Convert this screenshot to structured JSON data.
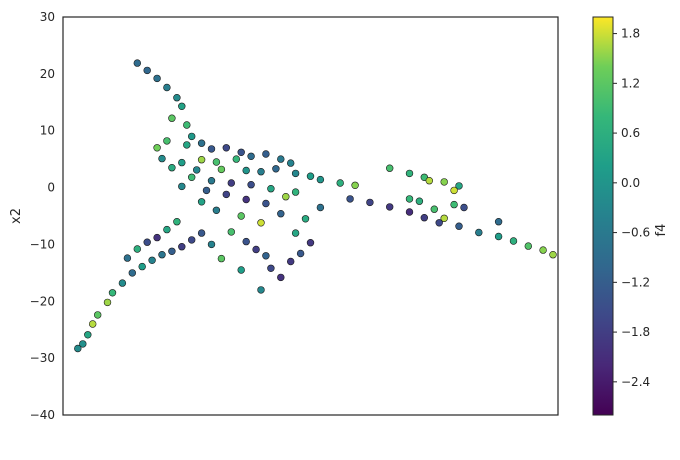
{
  "chart_data": {
    "type": "scatter",
    "title": "",
    "xlabel": "",
    "ylabel": "x2",
    "ylim": [
      -40,
      30
    ],
    "yticks": [
      "30",
      "20",
      "10",
      "0",
      "−10",
      "−20",
      "−30",
      "−40"
    ],
    "xticks": [],
    "grid": false,
    "colorbar": {
      "label": "f4",
      "range": [
        -2.8,
        2.0
      ],
      "ticks": [
        "1.8",
        "1.2",
        "0.6",
        "0.0",
        "−0.6",
        "−1.2",
        "−1.8",
        "−2.4"
      ],
      "colormap": "viridis"
    },
    "series": [
      {
        "points": [
          [
            0.15,
            21.9,
            -0.9
          ],
          [
            0.17,
            20.6,
            -1.0
          ],
          [
            0.19,
            19.2,
            -0.8
          ],
          [
            0.21,
            17.6,
            -0.5
          ],
          [
            0.23,
            15.8,
            -0.2
          ],
          [
            0.24,
            14.3,
            0.3
          ],
          [
            0.22,
            12.2,
            1.2
          ],
          [
            0.25,
            11.0,
            0.9
          ],
          [
            0.26,
            9.0,
            0.1
          ],
          [
            0.21,
            8.2,
            1.0
          ],
          [
            0.19,
            7.0,
            1.4
          ],
          [
            0.25,
            7.5,
            0.4
          ],
          [
            0.28,
            7.8,
            -0.8
          ],
          [
            0.3,
            6.8,
            -1.3
          ],
          [
            0.33,
            7.0,
            -1.6
          ],
          [
            0.36,
            6.2,
            -1.4
          ],
          [
            0.38,
            5.5,
            -0.9
          ],
          [
            0.41,
            5.9,
            -1.2
          ],
          [
            0.44,
            5.0,
            -0.6
          ],
          [
            0.46,
            4.3,
            -0.4
          ],
          [
            0.35,
            5.0,
            0.8
          ],
          [
            0.31,
            4.5,
            1.0
          ],
          [
            0.28,
            4.9,
            1.6
          ],
          [
            0.24,
            4.4,
            0.2
          ],
          [
            0.2,
            5.1,
            -0.2
          ],
          [
            0.22,
            3.5,
            0.5
          ],
          [
            0.27,
            3.1,
            -0.3
          ],
          [
            0.32,
            3.2,
            1.3
          ],
          [
            0.37,
            3.0,
            0.0
          ],
          [
            0.4,
            2.8,
            -0.5
          ],
          [
            0.43,
            3.3,
            -1.0
          ],
          [
            0.47,
            2.5,
            -0.3
          ],
          [
            0.5,
            2.0,
            0.2
          ],
          [
            0.52,
            1.4,
            0.0
          ],
          [
            0.56,
            0.8,
            0.6
          ],
          [
            0.59,
            0.4,
            1.5
          ],
          [
            0.26,
            1.8,
            0.9
          ],
          [
            0.3,
            1.2,
            -0.6
          ],
          [
            0.34,
            0.8,
            -1.8
          ],
          [
            0.38,
            0.5,
            -1.5
          ],
          [
            0.42,
            -0.2,
            0.4
          ],
          [
            0.47,
            -0.8,
            0.7
          ],
          [
            0.24,
            0.2,
            -0.3
          ],
          [
            0.29,
            -0.5,
            -1.2
          ],
          [
            0.33,
            -1.2,
            -1.7
          ],
          [
            0.37,
            -2.1,
            -2.0
          ],
          [
            0.41,
            -2.8,
            -1.4
          ],
          [
            0.45,
            -1.6,
            1.6
          ],
          [
            0.52,
            -3.5,
            -0.8
          ],
          [
            0.28,
            -2.5,
            0.3
          ],
          [
            0.31,
            -4.0,
            -0.5
          ],
          [
            0.36,
            -5.0,
            1.2
          ],
          [
            0.4,
            -6.2,
            1.8
          ],
          [
            0.44,
            -4.6,
            -1.1
          ],
          [
            0.49,
            -5.5,
            0.5
          ],
          [
            0.66,
            3.4,
            1.0
          ],
          [
            0.7,
            2.5,
            0.7
          ],
          [
            0.73,
            1.8,
            0.9
          ],
          [
            0.77,
            1.0,
            1.5
          ],
          [
            0.8,
            0.3,
            0.4
          ],
          [
            0.74,
            1.2,
            1.7
          ],
          [
            0.79,
            -0.5,
            1.8
          ],
          [
            0.72,
            -2.4,
            0.6
          ],
          [
            0.75,
            -3.8,
            1.0
          ],
          [
            0.77,
            -5.4,
            1.7
          ],
          [
            0.58,
            -2.0,
            -1.4
          ],
          [
            0.62,
            -2.6,
            -1.7
          ],
          [
            0.66,
            -3.4,
            -1.9
          ],
          [
            0.7,
            -4.3,
            -2.1
          ],
          [
            0.73,
            -5.3,
            -1.8
          ],
          [
            0.76,
            -6.2,
            -1.6
          ],
          [
            0.8,
            -6.8,
            -1.2
          ],
          [
            0.84,
            -7.9,
            -0.5
          ],
          [
            0.88,
            -8.6,
            0.2
          ],
          [
            0.91,
            -9.4,
            0.6
          ],
          [
            0.94,
            -10.3,
            1.1
          ],
          [
            0.97,
            -11.0,
            1.5
          ],
          [
            0.99,
            -11.8,
            1.6
          ],
          [
            0.7,
            -2.0,
            0.8
          ],
          [
            0.79,
            -3.0,
            0.9
          ],
          [
            0.88,
            -6.0,
            -0.9
          ],
          [
            0.81,
            -3.5,
            -1.5
          ],
          [
            0.28,
            -8.0,
            -1.3
          ],
          [
            0.26,
            -9.2,
            -1.6
          ],
          [
            0.24,
            -10.4,
            -1.8
          ],
          [
            0.22,
            -11.2,
            -1.2
          ],
          [
            0.2,
            -11.8,
            -0.7
          ],
          [
            0.18,
            -12.8,
            -0.4
          ],
          [
            0.16,
            -13.9,
            0.2
          ],
          [
            0.14,
            -15.0,
            -0.9
          ],
          [
            0.12,
            -16.8,
            -0.2
          ],
          [
            0.1,
            -18.5,
            0.8
          ],
          [
            0.09,
            -20.2,
            1.6
          ],
          [
            0.07,
            -22.4,
            1.2
          ],
          [
            0.06,
            -24.0,
            1.7
          ],
          [
            0.05,
            -25.9,
            0.4
          ],
          [
            0.04,
            -27.5,
            -0.1
          ],
          [
            0.03,
            -28.3,
            -0.2
          ],
          [
            0.13,
            -12.4,
            -0.8
          ],
          [
            0.15,
            -10.8,
            0.6
          ],
          [
            0.17,
            -9.6,
            -1.5
          ],
          [
            0.19,
            -8.8,
            -2.0
          ],
          [
            0.21,
            -7.4,
            0.4
          ],
          [
            0.23,
            -6.0,
            0.7
          ],
          [
            0.34,
            -7.8,
            1.0
          ],
          [
            0.37,
            -9.5,
            -1.4
          ],
          [
            0.39,
            -10.9,
            -1.8
          ],
          [
            0.41,
            -12.0,
            -1.1
          ],
          [
            0.42,
            -14.2,
            -1.6
          ],
          [
            0.44,
            -15.8,
            -2.0
          ],
          [
            0.46,
            -13.0,
            -1.9
          ],
          [
            0.48,
            -11.6,
            -1.3
          ],
          [
            0.4,
            -18.0,
            -0.3
          ],
          [
            0.36,
            -14.5,
            0.2
          ],
          [
            0.3,
            -10.0,
            -0.4
          ],
          [
            0.32,
            -12.5,
            1.2
          ],
          [
            0.5,
            -9.7,
            -1.9
          ],
          [
            0.47,
            -8.0,
            0.4
          ]
        ]
      }
    ]
  }
}
